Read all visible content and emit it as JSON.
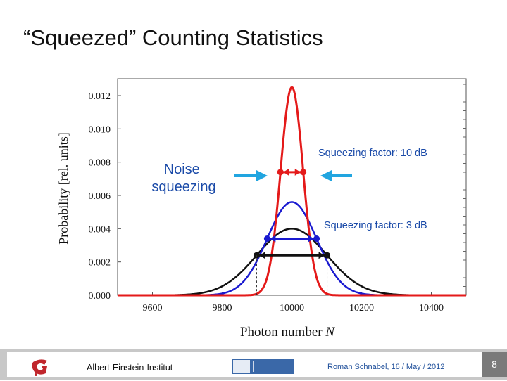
{
  "slide": {
    "title": "“Squeezed” Counting Statistics",
    "annotation_noise": [
      "Noise",
      "squeezing"
    ],
    "annotation_10db": "Squeezing factor: 10 dB",
    "annotation_3db": "Squeezing factor: 3 dB"
  },
  "footer": {
    "institute": "Albert-Einstein-Institut",
    "author_date": "Roman Schnabel, 16 / May / 2012",
    "page": "8"
  },
  "colors": {
    "red": "#e41a1a",
    "blue": "#1a1ad0",
    "black": "#111111",
    "cyan_arrow": "#21a5e0"
  },
  "chart_data": {
    "type": "line",
    "xlabel": "Photon number N",
    "ylabel": "Probability [rel. units]",
    "xlim": [
      9500,
      10500
    ],
    "ylim": [
      0,
      0.013
    ],
    "x_ticks": [
      9600,
      9800,
      10000,
      10200,
      10400
    ],
    "x_tick_labels": [
      "9600",
      "9800",
      "10000",
      "10200",
      "10400"
    ],
    "y_ticks": [
      0,
      0.002,
      0.004,
      0.006,
      0.008,
      0.01,
      0.012
    ],
    "y_tick_labels": [
      "0.000",
      "0.002",
      "0.004",
      "0.006",
      "0.008",
      "0.010",
      "0.012"
    ],
    "series": [
      {
        "color": "#111111",
        "mean": 10000,
        "stdev": 100,
        "peak": 0.004,
        "fwhm_marker_y": 0.0024
      },
      {
        "color": "#1a1ad0",
        "mean": 10000,
        "stdev": 71,
        "peak": 0.0056,
        "fwhm_marker_y": 0.0034
      },
      {
        "color": "#e41a1a",
        "mean": 10000,
        "stdev": 32,
        "peak": 0.0125,
        "fwhm_marker_y": 0.0074
      }
    ]
  }
}
